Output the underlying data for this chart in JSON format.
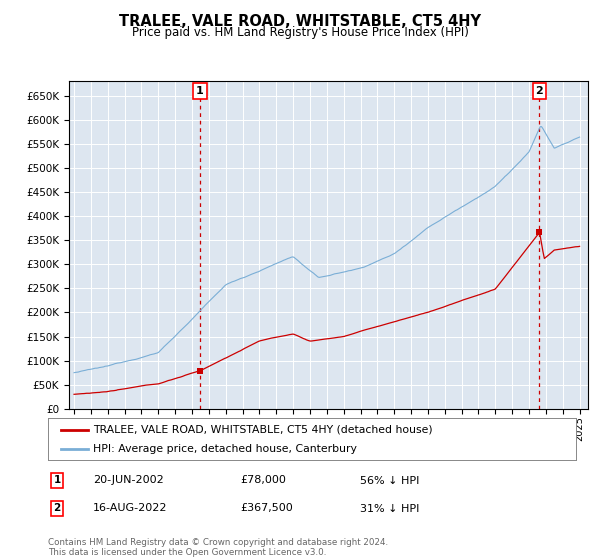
{
  "title": "TRALEE, VALE ROAD, WHITSTABLE, CT5 4HY",
  "subtitle": "Price paid vs. HM Land Registry's House Price Index (HPI)",
  "ylim": [
    0,
    680000
  ],
  "yticks": [
    0,
    50000,
    100000,
    150000,
    200000,
    250000,
    300000,
    350000,
    400000,
    450000,
    500000,
    550000,
    600000,
    650000
  ],
  "background_color": "#dde6f0",
  "grid_color": "#ffffff",
  "red_line_color": "#cc0000",
  "blue_line_color": "#7aaed6",
  "sale1_price": 78000,
  "sale1_x": 2002.47,
  "sale2_price": 367500,
  "sale2_x": 2022.62,
  "legend_line1": "TRALEE, VALE ROAD, WHITSTABLE, CT5 4HY (detached house)",
  "legend_line2": "HPI: Average price, detached house, Canterbury",
  "note1_date": "20-JUN-2002",
  "note1_price": "£78,000",
  "note1_pct": "56% ↓ HPI",
  "note2_date": "16-AUG-2022",
  "note2_price": "£367,500",
  "note2_pct": "31% ↓ HPI",
  "footer": "Contains HM Land Registry data © Crown copyright and database right 2024.\nThis data is licensed under the Open Government Licence v3.0."
}
